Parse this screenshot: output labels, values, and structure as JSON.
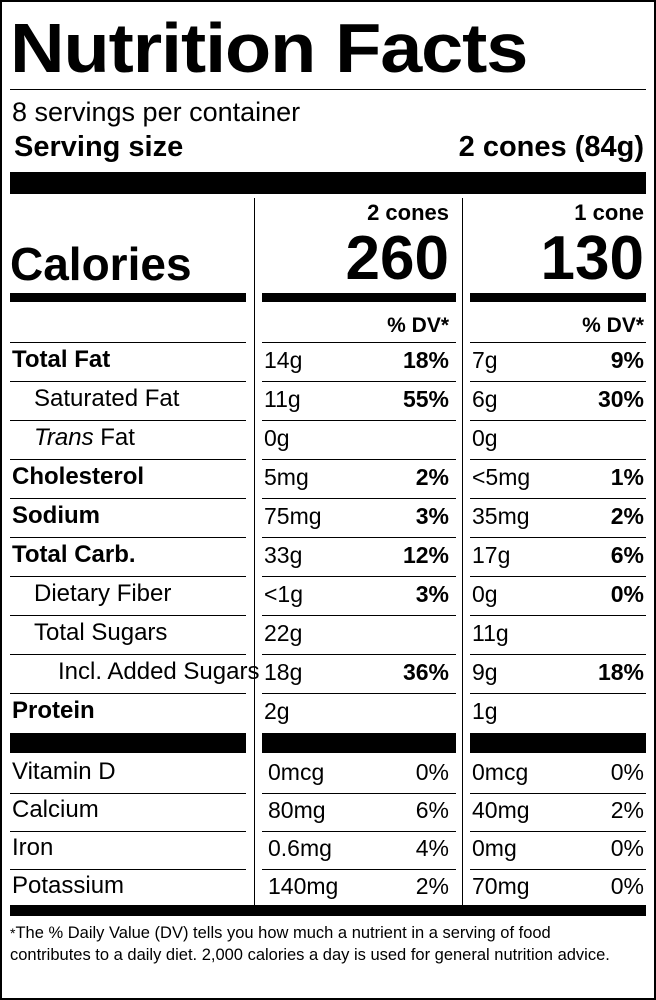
{
  "title": "Nutrition Facts",
  "servings_per_container": "8 servings per container",
  "serving_size_label": "Serving size",
  "serving_size_value": "2 cones (84g)",
  "columns": [
    {
      "header": "2 cones",
      "calories": "260"
    },
    {
      "header": "1 cone",
      "calories": "130"
    }
  ],
  "calories_label": "Calories",
  "dv_header": "% DV*",
  "nutrients": [
    {
      "name": "Total Fat",
      "bold": true,
      "indent": 0,
      "c1_amount": "14g",
      "c1_dv": "18%",
      "c2_amount": "7g",
      "c2_dv": "9%"
    },
    {
      "name": "Saturated Fat",
      "bold": false,
      "indent": 1,
      "c1_amount": "11g",
      "c1_dv": "55%",
      "c2_amount": "6g",
      "c2_dv": "30%"
    },
    {
      "name_italic": "Trans",
      "name": "Fat",
      "bold": false,
      "indent": 1,
      "c1_amount": "0g",
      "c1_dv": "",
      "c2_amount": "0g",
      "c2_dv": ""
    },
    {
      "name": "Cholesterol",
      "bold": true,
      "indent": 0,
      "c1_amount": "5mg",
      "c1_dv": "2%",
      "c2_amount": "<5mg",
      "c2_dv": "1%"
    },
    {
      "name": "Sodium",
      "bold": true,
      "indent": 0,
      "c1_amount": "75mg",
      "c1_dv": "3%",
      "c2_amount": "35mg",
      "c2_dv": "2%"
    },
    {
      "name": "Total Carb.",
      "bold": true,
      "indent": 0,
      "c1_amount": "33g",
      "c1_dv": "12%",
      "c2_amount": "17g",
      "c2_dv": "6%"
    },
    {
      "name": "Dietary Fiber",
      "bold": false,
      "indent": 1,
      "c1_amount": "<1g",
      "c1_dv": "3%",
      "c2_amount": "0g",
      "c2_dv": "0%"
    },
    {
      "name": "Total Sugars",
      "bold": false,
      "indent": 1,
      "c1_amount": "22g",
      "c1_dv": "",
      "c2_amount": "11g",
      "c2_dv": ""
    },
    {
      "name": "Incl. Added Sugars",
      "bold": false,
      "indent": 2,
      "c1_amount": "18g",
      "c1_dv": "36%",
      "c2_amount": "9g",
      "c2_dv": "18%"
    },
    {
      "name": "Protein",
      "bold": true,
      "indent": 0,
      "c1_amount": "2g",
      "c1_dv": "",
      "c2_amount": "1g",
      "c2_dv": ""
    }
  ],
  "vitamins": [
    {
      "name": "Vitamin D",
      "c1_amount": "0mcg",
      "c1_dv": "0%",
      "c2_amount": "0mcg",
      "c2_dv": "0%"
    },
    {
      "name": "Calcium",
      "c1_amount": "80mg",
      "c1_dv": "6%",
      "c2_amount": "40mg",
      "c2_dv": "2%"
    },
    {
      "name": "Iron",
      "c1_amount": "0.6mg",
      "c1_dv": "4%",
      "c2_amount": "0mg",
      "c2_dv": "0%"
    },
    {
      "name": "Potassium",
      "c1_amount": "140mg",
      "c1_dv": "2%",
      "c2_amount": "70mg",
      "c2_dv": "0%"
    }
  ],
  "footnote_star": "*",
  "footnote": "The % Daily Value (DV) tells you how much a nutrient in a serving of food contributes to a daily diet. 2,000 calories a day is used for general nutrition advice."
}
